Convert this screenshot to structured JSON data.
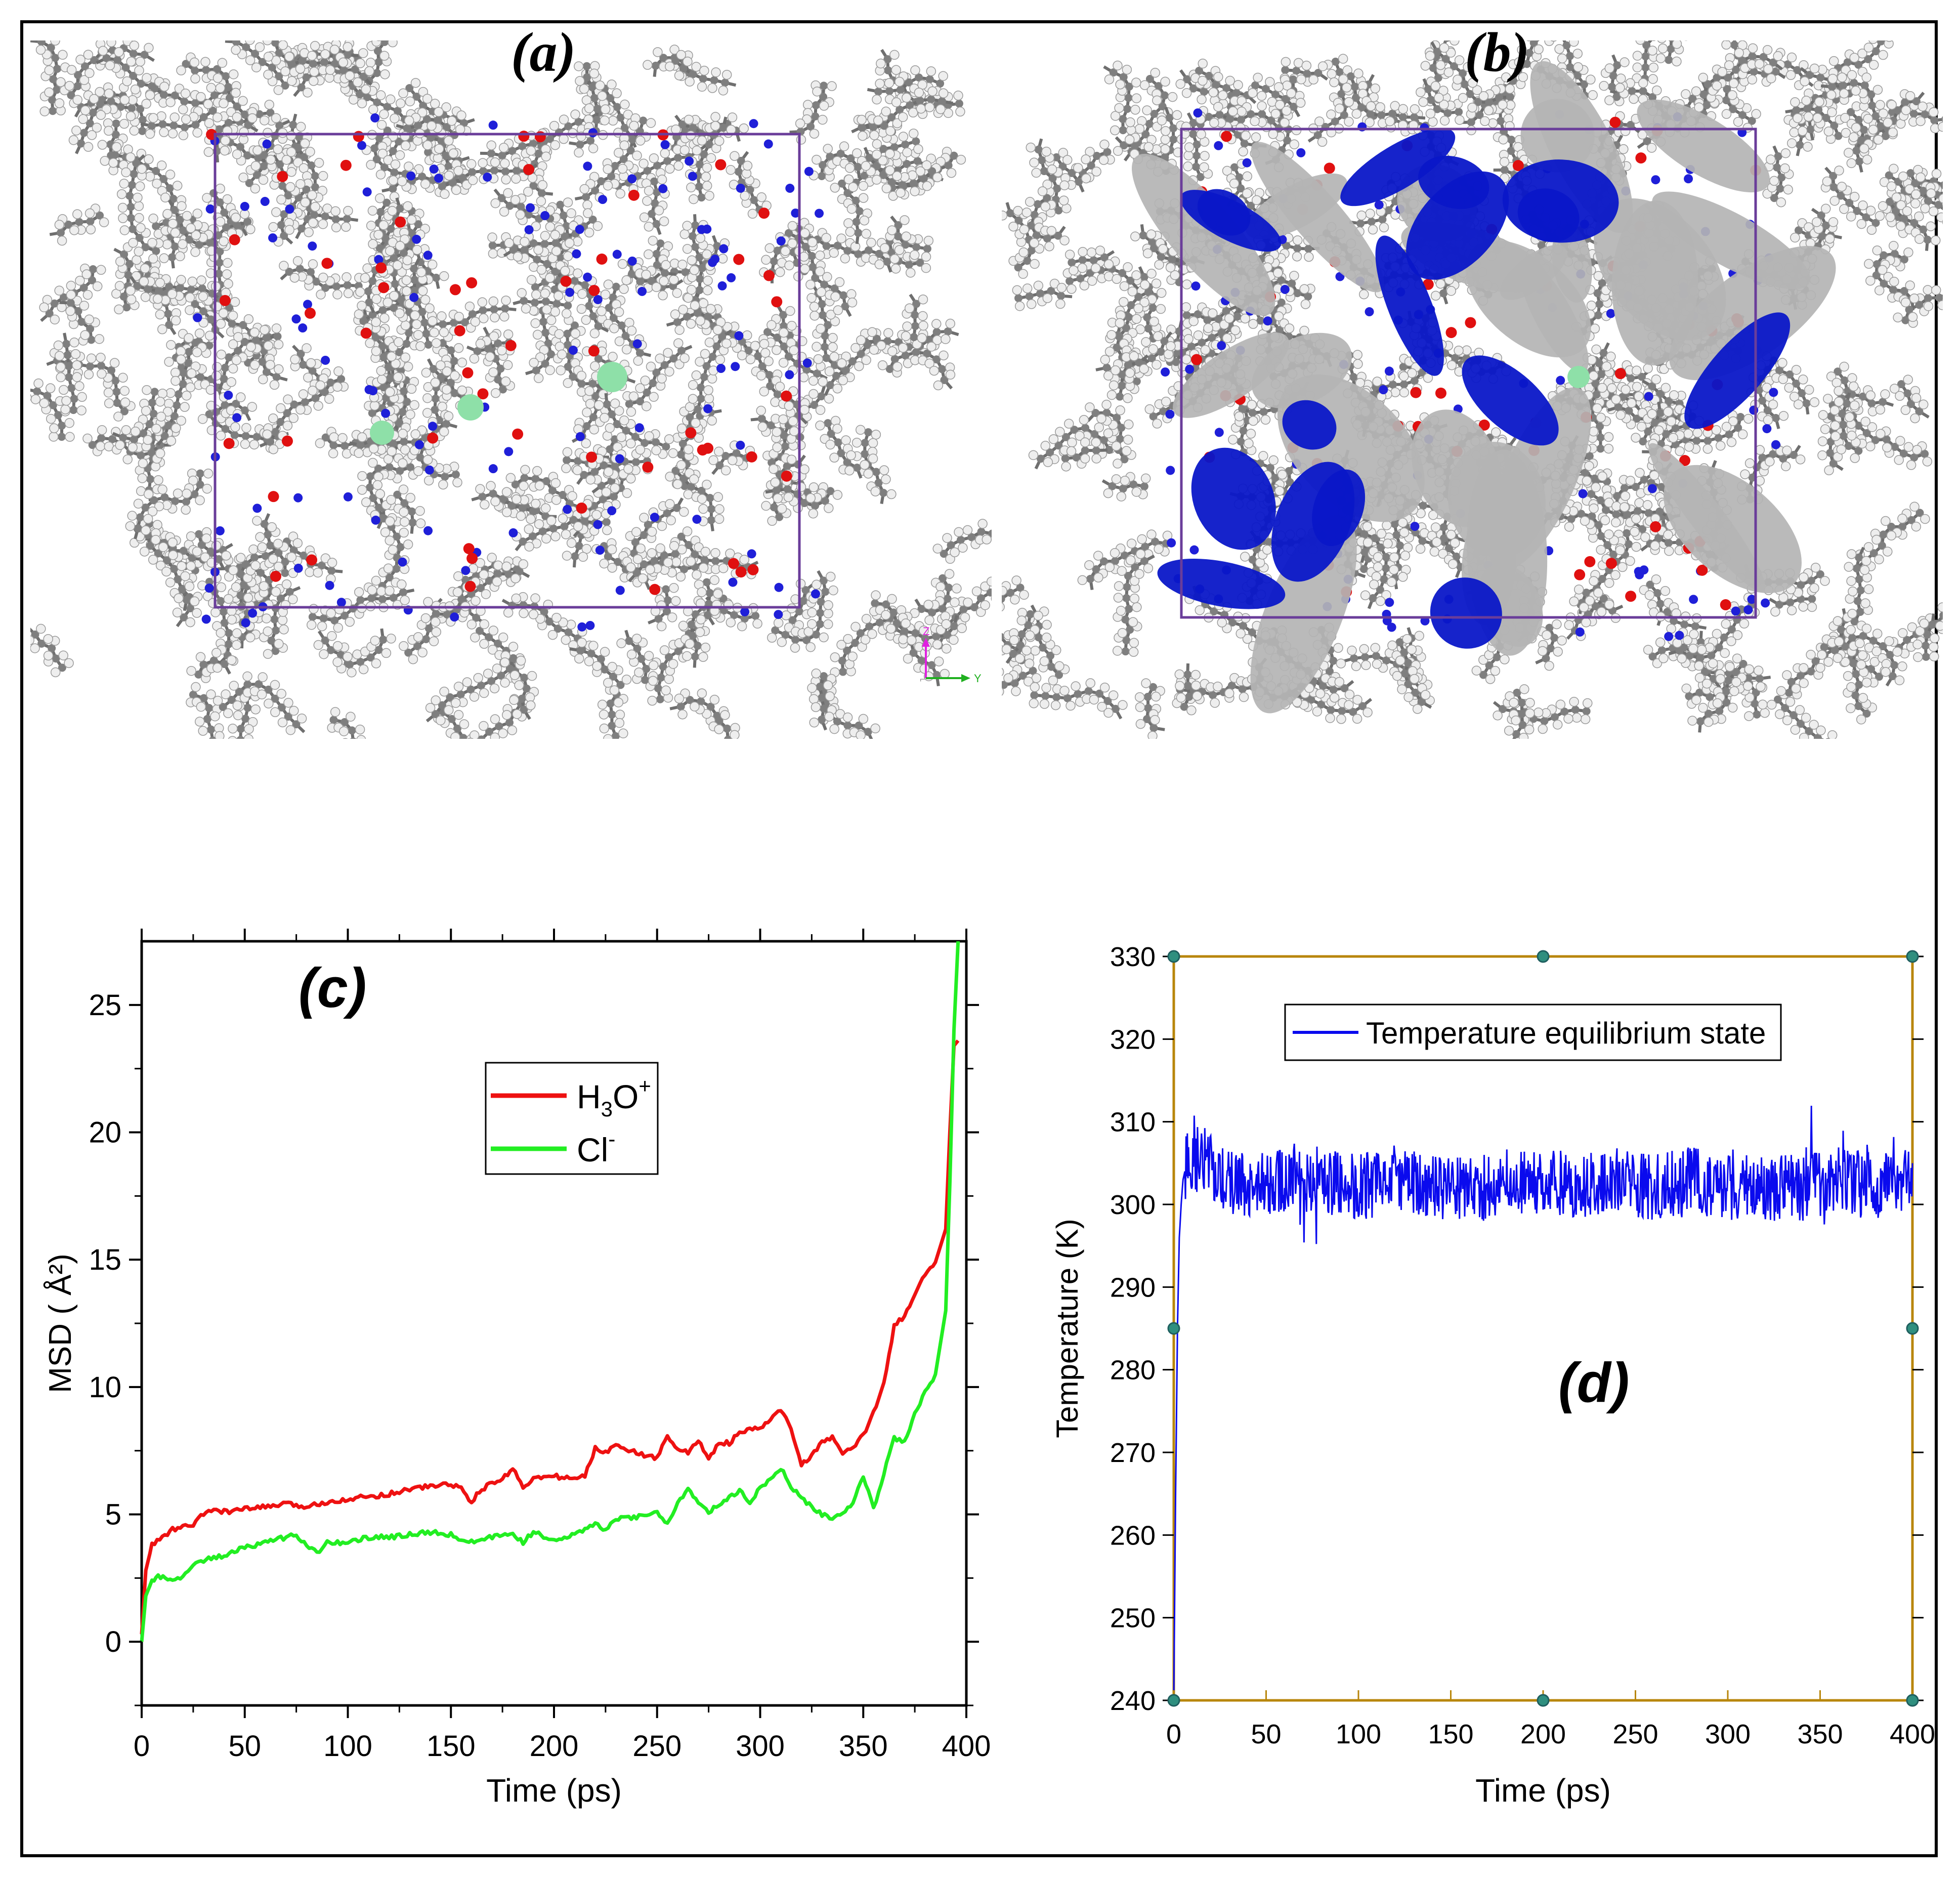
{
  "figure": {
    "labels": {
      "a": "(a)",
      "b": "(b)",
      "c": "(c)",
      "d": "(d)"
    },
    "axis_glyphs": {
      "z": "Z",
      "y": "Y"
    }
  },
  "colors": {
    "carbon": "#7f7f7f",
    "hydrogen": "#eeeeee",
    "nitrogen": "#1f1fd8",
    "oxygen": "#e01010",
    "chloride": "#8ee0a8",
    "cell": "#6a3d9a",
    "iso_grey": "#b4b4b4",
    "iso_blue": "#0a17c8",
    "h3o": "#ee1111",
    "cl": "#22ee22",
    "temp": "#0a0aee",
    "frame_d": "#b8860b"
  },
  "chart_data": [
    {
      "type": "line",
      "id": "c",
      "xlabel": "Time (ps)",
      "ylabel": "MSD ( Å²)",
      "xlim": [
        0,
        400
      ],
      "ylim": [
        -2.5,
        27.5
      ],
      "xticks": [
        "0",
        "50",
        "100",
        "150",
        "200",
        "250",
        "300",
        "350",
        "400"
      ],
      "yticks": [
        "0",
        "5",
        "10",
        "15",
        "20",
        "25"
      ],
      "legend": [
        {
          "name": "H₃O⁺",
          "sub": "3",
          "sup": "+"
        },
        {
          "name": "Cl⁻",
          "sup": "-"
        }
      ],
      "series": [
        {
          "name": "H3O+",
          "x": [
            0,
            2,
            5,
            10,
            15,
            20,
            25,
            30,
            35,
            40,
            50,
            60,
            70,
            80,
            90,
            100,
            110,
            120,
            130,
            140,
            150,
            155,
            160,
            165,
            170,
            175,
            180,
            185,
            190,
            200,
            210,
            215,
            220,
            225,
            230,
            235,
            240,
            250,
            255,
            260,
            265,
            270,
            275,
            280,
            285,
            290,
            300,
            305,
            310,
            315,
            320,
            330,
            335,
            340,
            345,
            350,
            355,
            360,
            365,
            370,
            375,
            380,
            385,
            390,
            392,
            394,
            396
          ],
          "y": [
            0.3,
            2.8,
            3.8,
            4.1,
            4.4,
            4.5,
            4.6,
            5.0,
            5.2,
            5.1,
            5.2,
            5.3,
            5.4,
            5.3,
            5.5,
            5.6,
            5.7,
            5.8,
            6.0,
            6.1,
            6.2,
            6.0,
            5.5,
            6.0,
            6.2,
            6.4,
            6.8,
            6.1,
            6.4,
            6.5,
            6.4,
            6.5,
            7.6,
            7.4,
            7.8,
            7.6,
            7.4,
            7.2,
            8.1,
            7.6,
            7.4,
            7.9,
            7.2,
            7.8,
            7.8,
            8.2,
            8.4,
            8.7,
            9.1,
            8.4,
            6.9,
            7.8,
            8.0,
            7.4,
            7.6,
            8.1,
            9.0,
            10.2,
            12.4,
            12.8,
            13.6,
            14.4,
            14.9,
            16.2,
            20.0,
            23.4,
            23.6
          ]
        },
        {
          "name": "Cl-",
          "x": [
            0,
            2,
            5,
            8,
            15,
            20,
            25,
            30,
            40,
            50,
            60,
            70,
            75,
            80,
            85,
            90,
            100,
            110,
            120,
            130,
            140,
            150,
            160,
            170,
            180,
            185,
            190,
            200,
            210,
            215,
            220,
            225,
            230,
            240,
            250,
            255,
            260,
            265,
            270,
            275,
            280,
            285,
            290,
            295,
            300,
            305,
            310,
            315,
            320,
            330,
            335,
            340,
            345,
            350,
            355,
            360,
            365,
            370,
            375,
            380,
            385,
            390,
            392,
            394,
            396
          ],
          "y": [
            0,
            1.8,
            2.4,
            2.6,
            2.4,
            2.6,
            3.0,
            3.2,
            3.4,
            3.7,
            3.9,
            4.1,
            4.2,
            3.8,
            3.5,
            3.9,
            3.9,
            4.1,
            4.1,
            4.2,
            4.3,
            4.2,
            3.9,
            4.1,
            4.2,
            3.9,
            4.3,
            4.0,
            4.2,
            4.4,
            4.6,
            4.4,
            4.8,
            4.9,
            5.1,
            4.6,
            5.4,
            6.0,
            5.5,
            5.1,
            5.4,
            5.7,
            5.9,
            5.5,
            6.0,
            6.4,
            6.8,
            6.1,
            5.6,
            5.0,
            4.8,
            5.1,
            5.4,
            6.5,
            5.2,
            6.6,
            8.0,
            7.9,
            8.9,
            9.8,
            10.5,
            13.0,
            18.0,
            24.0,
            27.5
          ]
        }
      ]
    },
    {
      "type": "line",
      "id": "d",
      "xlabel": "Time (ps)",
      "ylabel": "Temperature (K)",
      "xlim": [
        0,
        400
      ],
      "ylim": [
        240,
        330
      ],
      "xticks": [
        "0",
        "50",
        "100",
        "150",
        "200",
        "250",
        "300",
        "350",
        "400"
      ],
      "yticks": [
        "240",
        "250",
        "260",
        "270",
        "280",
        "290",
        "300",
        "310",
        "320",
        "330"
      ],
      "legend": [
        {
          "name": "Temperature equilibrium state"
        }
      ],
      "series": [
        {
          "name": "Temperature equilibrium state",
          "x": [
            0,
            1,
            2,
            3,
            4,
            5,
            6,
            8,
            10,
            15,
            20,
            25,
            30,
            40,
            50,
            60,
            80,
            100,
            120,
            140,
            160,
            180,
            200,
            220,
            240,
            260,
            280,
            300,
            320,
            340,
            360,
            380,
            400
          ],
          "y": [
            240,
            265,
            285,
            296,
            300,
            303,
            304,
            305,
            305,
            306,
            305,
            303,
            303,
            302,
            302,
            303,
            303,
            302,
            303,
            302,
            302,
            302,
            303,
            302,
            303,
            302,
            303,
            302,
            302,
            302,
            303,
            302,
            303
          ],
          "noise": 4.0,
          "range": [
            292.5,
            312.5
          ]
        }
      ]
    }
  ]
}
